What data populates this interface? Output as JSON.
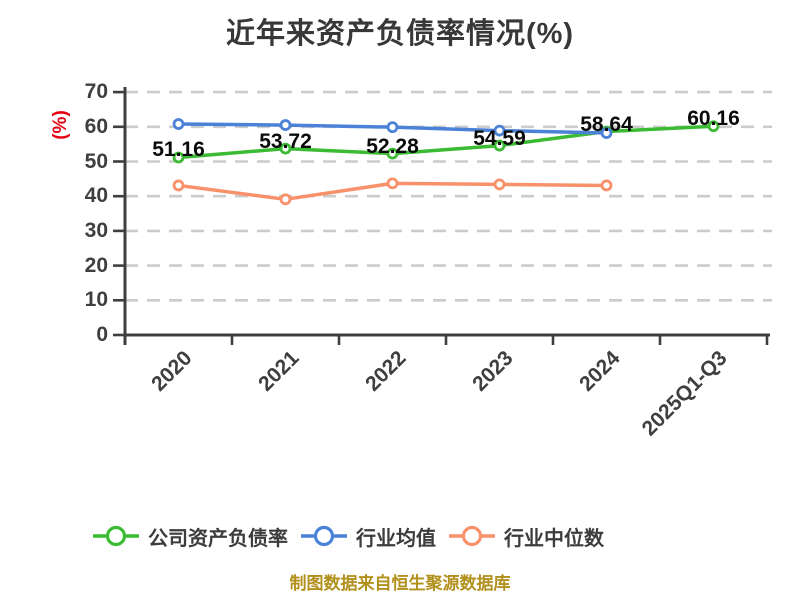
{
  "title": "近年来资产负债率情况(%)",
  "footer": {
    "text": "制图数据来自恒生聚源数据库",
    "color": "#b2901c"
  },
  "colors": {
    "title_text": "#383838",
    "axis": "#3f3f3f",
    "tick_label": "#3f3f3f",
    "gridline": "#cccccc",
    "data_label": "#0a0a0a",
    "y_axis_name": "#e60012",
    "marker_fill": "#ffffff"
  },
  "y_axis": {
    "name": "(%)",
    "ticks": [
      "0",
      "10",
      "20",
      "30",
      "40",
      "50",
      "60",
      "70"
    ],
    "min": 0,
    "max": 70
  },
  "x_axis": {
    "categories": [
      "2020",
      "2021",
      "2022",
      "2023",
      "2024",
      "2025Q1-Q3"
    ]
  },
  "chart_data": {
    "type": "line",
    "title": "近年来资产负债率情况(%)",
    "categories": [
      "2020",
      "2021",
      "2022",
      "2023",
      "2024",
      "2025Q1-Q3"
    ],
    "series": [
      {
        "name": "公司资产负债率",
        "color": "#3bbb33",
        "values": [
          51.16,
          53.72,
          52.28,
          54.59,
          58.64,
          60.16
        ],
        "labels": [
          "51.16",
          "53.72",
          "52.28",
          "54.59",
          "58.64",
          "60.16"
        ]
      },
      {
        "name": "行业均值",
        "color": "#4b82d8",
        "values": [
          60.8,
          60.5,
          59.9,
          58.9,
          58.2,
          null
        ]
      },
      {
        "name": "行业中位数",
        "color": "#f8916a",
        "values": [
          43.1,
          39.1,
          43.7,
          43.4,
          43.1,
          null
        ]
      }
    ],
    "ylim": [
      0,
      70
    ],
    "ylabel": "(%)",
    "xlabel": "",
    "grid": "horizontal-dashed",
    "legend_position": "bottom",
    "x_label_rotation": 45,
    "marker": "circle-white-fill"
  },
  "legend": {
    "items": [
      {
        "label": "公司资产负债率",
        "color": "#3bbb33"
      },
      {
        "label": "行业均值",
        "color": "#4b82d8"
      },
      {
        "label": "行业中位数",
        "color": "#f8916a"
      }
    ]
  }
}
